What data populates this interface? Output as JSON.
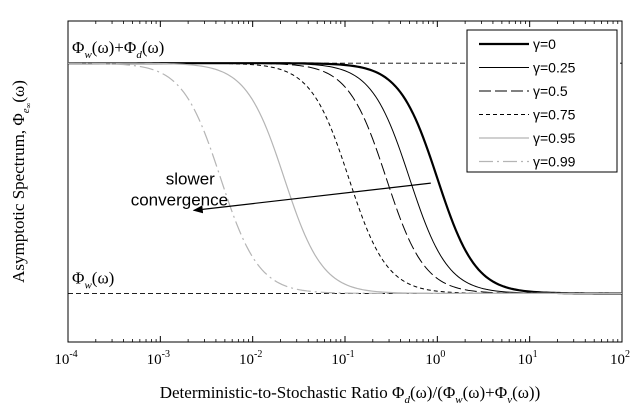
{
  "chart_data": {
    "type": "line",
    "x_scale": "log",
    "xlim": [
      0.0001,
      100
    ],
    "ylim": [
      0,
      1
    ],
    "grid": false,
    "legend_position": "top-right",
    "xlabel": {
      "prefix": "Deterministic-to-Stochastic Ratio ",
      "num": "Φ",
      "num_sub": "d",
      "arg": "(ω)/(",
      "t1": "Φ",
      "t1_sub": "w",
      "t1_arg": "(ω)+",
      "t2": "Φ",
      "t2_sub": "v",
      "t2_arg": "(ω))"
    },
    "ylabel": {
      "prefix": "Asymptotic Spectrum, ",
      "sym": "Φ",
      "sub": "e",
      "subsub": "∞",
      "arg": "(ω)"
    },
    "x_ticks": [
      {
        "value": 0.0001,
        "base": "10",
        "exp": "-4"
      },
      {
        "value": 0.001,
        "base": "10",
        "exp": "-3"
      },
      {
        "value": 0.01,
        "base": "10",
        "exp": "-2"
      },
      {
        "value": 0.1,
        "base": "10",
        "exp": "-1"
      },
      {
        "value": 1,
        "base": "10",
        "exp": "0"
      },
      {
        "value": 10,
        "base": "10",
        "exp": "1"
      },
      {
        "value": 100,
        "base": "10",
        "exp": "2"
      }
    ],
    "ref_lines": [
      {
        "y": 0.8686,
        "label": {
          "a": "Φ",
          "a_sub": "w",
          "a_arg": "(ω)+",
          "b": "Φ",
          "b_sub": "d",
          "b_arg": "(ω)"
        }
      },
      {
        "y": 0.1514,
        "label": {
          "a": "Φ",
          "a_sub": "w",
          "a_arg": "(ω)"
        }
      }
    ],
    "series": [
      {
        "name": "γ=0",
        "x50": 1.0,
        "color": "#000000",
        "width": 2.2,
        "dash": ""
      },
      {
        "name": "γ=0.25",
        "x50": 0.5,
        "color": "#000000",
        "width": 1.0,
        "dash": ""
      },
      {
        "name": "γ=0.5",
        "x50": 0.28,
        "color": "#000000",
        "width": 1.0,
        "dash": "12,4"
      },
      {
        "name": "γ=0.75",
        "x50": 0.11,
        "color": "#000000",
        "width": 1.0,
        "dash": "4,3"
      },
      {
        "name": "γ=0.95",
        "x50": 0.022,
        "color": "#b5b5b5",
        "width": 1.2,
        "dash": ""
      },
      {
        "name": "γ=0.99",
        "x50": 0.0045,
        "color": "#b5b5b5",
        "width": 1.2,
        "dash": "14,4,2,4"
      }
    ],
    "annotation": {
      "lines": [
        "slower",
        "convergence"
      ],
      "arrow_from": {
        "x": 0.85,
        "y": 0.495
      },
      "arrow_to": {
        "x": 0.0023,
        "y": 0.41
      }
    }
  }
}
